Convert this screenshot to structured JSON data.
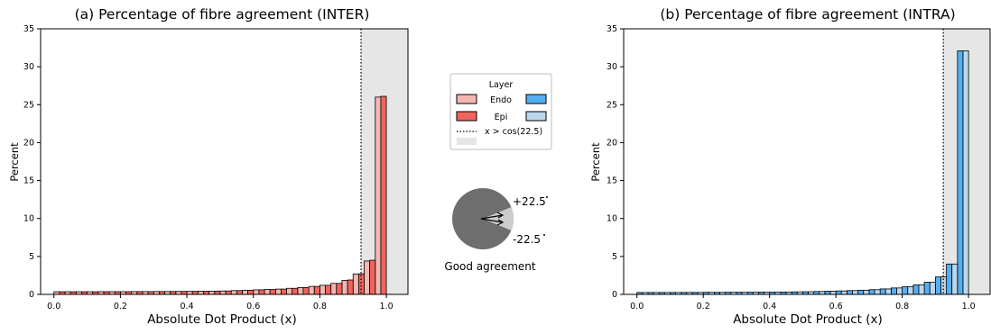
{
  "legend": {
    "title": "Layer",
    "entries": [
      "Endo",
      "Epi",
      "x > cos(22.5)"
    ],
    "colors": {
      "inter_endo": "#f4b6b2",
      "inter_epi": "#f0645c",
      "intra_endo": "#54aff0",
      "intra_epi": "#bcd6ec",
      "threshold_shade": "#e6e6e6"
    }
  },
  "inset": {
    "upper_label": "+22.5",
    "lower_label": "-22.5",
    "caption": "Good agreement",
    "colors": {
      "pie": "#6e6e6e",
      "wedge": "#cccccc"
    }
  },
  "chart_data": [
    {
      "type": "bar",
      "title": "(a) Percentage of fibre agreement (INTER)",
      "xlabel": "Absolute Dot Product (x)",
      "ylabel": "Percent",
      "xlim": [
        -0.04,
        1.065
      ],
      "ylim": [
        0,
        35
      ],
      "yticks": [
        "0",
        "5",
        "10",
        "15",
        "20",
        "25",
        "30",
        "35"
      ],
      "xticks": [
        "0.0",
        "0.2",
        "0.4",
        "0.6",
        "0.8",
        "1.0"
      ],
      "threshold": 0.9239,
      "shade_range": [
        0.9239,
        1.065
      ],
      "x": [
        0.0,
        0.0333,
        0.0667,
        0.1,
        0.1333,
        0.1667,
        0.2,
        0.2333,
        0.2667,
        0.3,
        0.3333,
        0.3667,
        0.4,
        0.4333,
        0.4667,
        0.5,
        0.5333,
        0.5667,
        0.6,
        0.6333,
        0.6667,
        0.7,
        0.7333,
        0.7667,
        0.8,
        0.8333,
        0.8667,
        0.9,
        0.9333,
        0.9667
      ],
      "series": [
        {
          "name": "Endo",
          "color": "#f4b6b2",
          "values": [
            0.35,
            0.35,
            0.35,
            0.35,
            0.36,
            0.36,
            0.36,
            0.37,
            0.37,
            0.38,
            0.38,
            0.39,
            0.4,
            0.42,
            0.43,
            0.45,
            0.5,
            0.55,
            0.6,
            0.65,
            0.7,
            0.8,
            0.9,
            1.05,
            1.2,
            1.45,
            1.85,
            2.7,
            4.4,
            26.0
          ]
        },
        {
          "name": "Epi",
          "color": "#f0645c",
          "values": [
            0.35,
            0.35,
            0.35,
            0.35,
            0.36,
            0.36,
            0.36,
            0.37,
            0.37,
            0.38,
            0.38,
            0.39,
            0.4,
            0.42,
            0.43,
            0.45,
            0.5,
            0.55,
            0.6,
            0.65,
            0.7,
            0.8,
            0.9,
            1.05,
            1.2,
            1.45,
            1.9,
            2.7,
            4.5,
            26.1
          ]
        }
      ]
    },
    {
      "type": "bar",
      "title": "(b) Percentage of fibre agreement (INTRA)",
      "xlabel": "Absolute Dot Product (x)",
      "ylabel": "Percent",
      "xlim": [
        -0.04,
        1.065
      ],
      "ylim": [
        0,
        35
      ],
      "yticks": [
        "0",
        "5",
        "10",
        "15",
        "20",
        "25",
        "30",
        "35"
      ],
      "xticks": [
        "0.0",
        "0.2",
        "0.4",
        "0.6",
        "0.8",
        "1.0"
      ],
      "threshold": 0.9239,
      "shade_range": [
        0.9239,
        1.065
      ],
      "x": [
        0.0,
        0.0333,
        0.0667,
        0.1,
        0.1333,
        0.1667,
        0.2,
        0.2333,
        0.2667,
        0.3,
        0.3333,
        0.3667,
        0.4,
        0.4333,
        0.4667,
        0.5,
        0.5333,
        0.5667,
        0.6,
        0.6333,
        0.6667,
        0.7,
        0.7333,
        0.7667,
        0.8,
        0.8333,
        0.8667,
        0.9,
        0.9333,
        0.9667
      ],
      "series": [
        {
          "name": "Endo",
          "color": "#54aff0",
          "values": [
            0.25,
            0.25,
            0.25,
            0.25,
            0.26,
            0.26,
            0.27,
            0.27,
            0.28,
            0.28,
            0.29,
            0.3,
            0.3,
            0.31,
            0.33,
            0.35,
            0.38,
            0.42,
            0.45,
            0.5,
            0.55,
            0.62,
            0.72,
            0.85,
            1.0,
            1.25,
            1.6,
            2.3,
            4.0,
            32.1
          ]
        },
        {
          "name": "Epi",
          "color": "#bcd6ec",
          "values": [
            0.25,
            0.25,
            0.25,
            0.25,
            0.26,
            0.26,
            0.27,
            0.27,
            0.28,
            0.28,
            0.29,
            0.3,
            0.3,
            0.31,
            0.33,
            0.35,
            0.38,
            0.42,
            0.45,
            0.5,
            0.55,
            0.62,
            0.72,
            0.85,
            1.0,
            1.25,
            1.6,
            2.3,
            4.0,
            32.1
          ]
        }
      ]
    }
  ]
}
